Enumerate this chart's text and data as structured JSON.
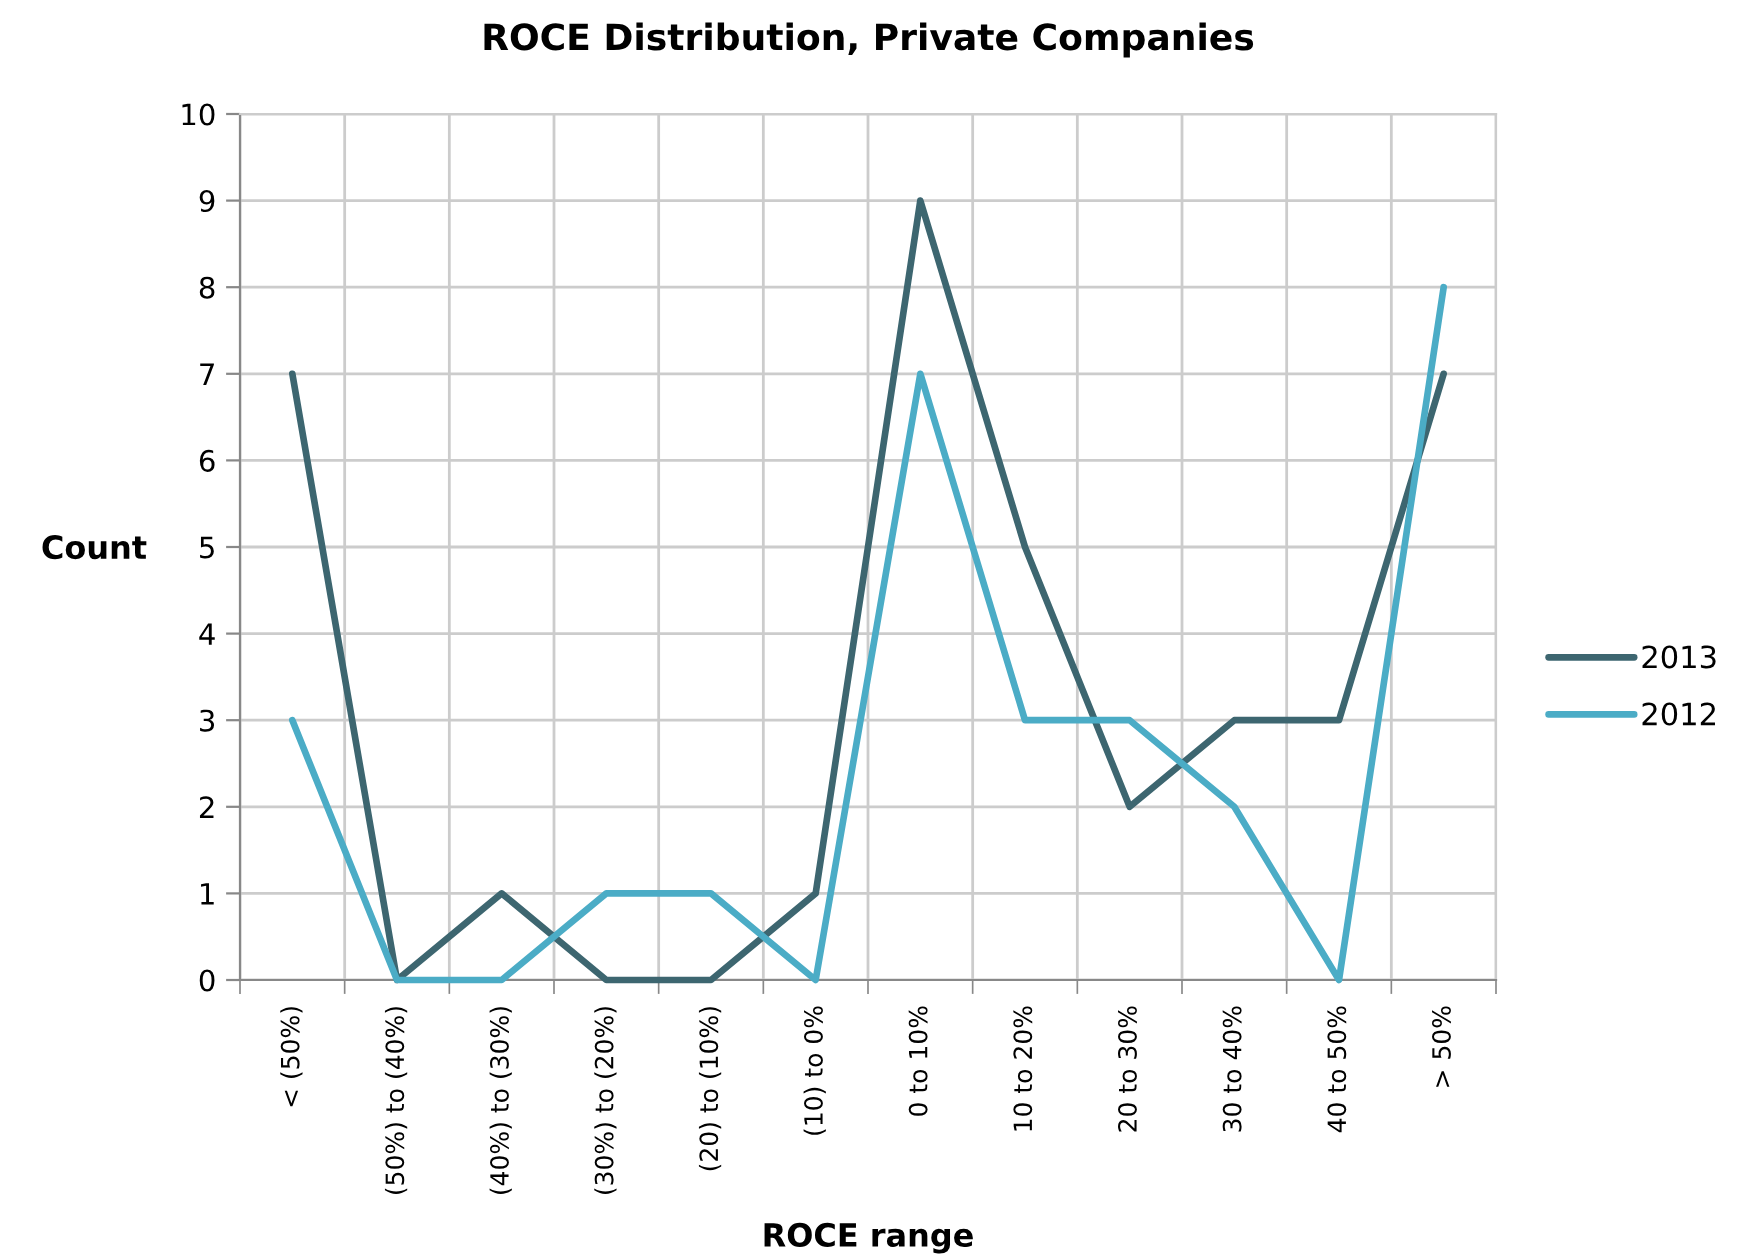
{
  "chart_data": {
    "type": "line",
    "title": "ROCE Distribution, Private Companies",
    "xlabel": "ROCE range",
    "ylabel": "Count",
    "categories": [
      "< (50%)",
      "(50%) to (40%)",
      "(40%) to (30%)",
      "(30%) to (20%)",
      "(20) to (10%)",
      "(10) to 0%",
      "0 to 10%",
      "10 to 20%",
      "20 to 30%",
      "30 to 40%",
      "40 to 50%",
      "> 50%"
    ],
    "series": [
      {
        "name": "2013",
        "color": "#3d6670",
        "values": [
          7,
          0,
          1,
          0,
          0,
          1,
          9,
          5,
          2,
          3,
          3,
          7
        ]
      },
      {
        "name": "2012",
        "color": "#4bacc6",
        "values": [
          3,
          0,
          0,
          1,
          1,
          0,
          7,
          3,
          3,
          2,
          0,
          8
        ]
      }
    ],
    "ylim": [
      0,
      10
    ],
    "yticks": [
      0,
      1,
      2,
      3,
      4,
      5,
      6,
      7,
      8,
      9,
      10
    ],
    "grid": true,
    "legend": "right",
    "marker": "none",
    "line_style": "solid"
  }
}
